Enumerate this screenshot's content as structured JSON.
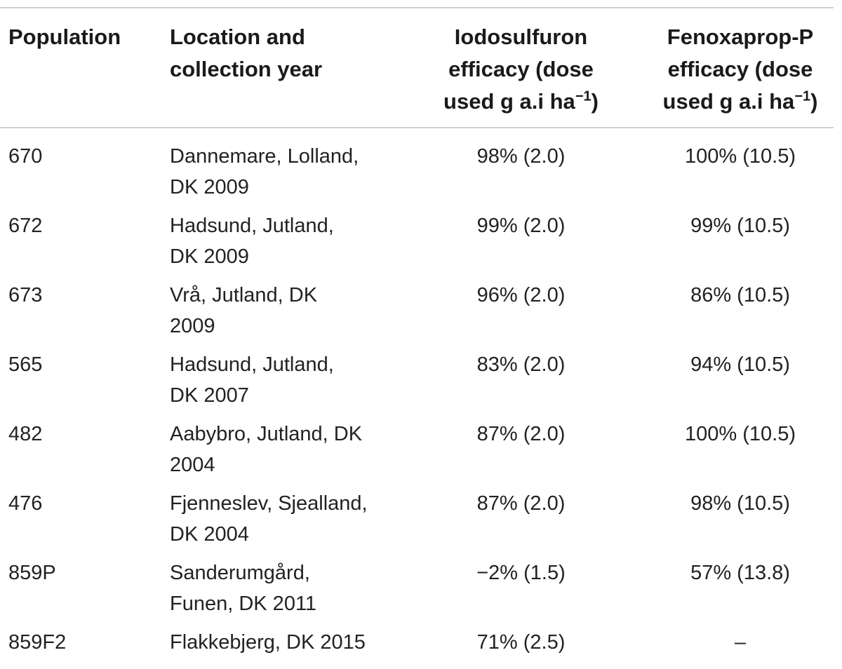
{
  "headers": {
    "population": "Population",
    "location_line1": "Location and",
    "location_line2": "collection year",
    "iodo_line1": "Iodosulfuron",
    "iodo_line2": "efficacy (dose",
    "iodo_line3": "used g a.i ha",
    "iodo_exp": "−1",
    "iodo_close": ")",
    "feno_line1": "Fenoxaprop-P",
    "feno_line2": "efficacy (dose",
    "feno_line3": "used g a.i ha",
    "feno_exp": "−1",
    "feno_close": ")"
  },
  "rows": [
    {
      "population": "670",
      "loc1": "Dannemare, Lolland,",
      "loc2": "DK 2009",
      "iodo": "98% (2.0)",
      "feno": "100% (10.5)"
    },
    {
      "population": "672",
      "loc1": "Hadsund, Jutland,",
      "loc2": "DK 2009",
      "iodo": "99% (2.0)",
      "feno": "99% (10.5)"
    },
    {
      "population": "673",
      "loc1": "Vrå, Jutland, DK",
      "loc2": "2009",
      "iodo": "96% (2.0)",
      "feno": "86% (10.5)"
    },
    {
      "population": "565",
      "loc1": "Hadsund, Jutland,",
      "loc2": "DK 2007",
      "iodo": "83% (2.0)",
      "feno": "94% (10.5)"
    },
    {
      "population": "482",
      "loc1": "Aabybro, Jutland, DK",
      "loc2": "2004",
      "iodo": "87% (2.0)",
      "feno": "100% (10.5)"
    },
    {
      "population": "476",
      "loc1": "Fjenneslev, Sjealland,",
      "loc2": "DK 2004",
      "iodo": "87% (2.0)",
      "feno": "98% (10.5)"
    },
    {
      "population": "859P",
      "loc1": "Sanderumgård,",
      "loc2": "Funen, DK 2011",
      "iodo": "−2% (1.5)",
      "feno": "57% (13.8)"
    },
    {
      "population": "859F2",
      "loc1": "Flakkebjerg, DK 2015",
      "loc2": "",
      "iodo": "71% (2.5)",
      "feno": "–"
    }
  ]
}
